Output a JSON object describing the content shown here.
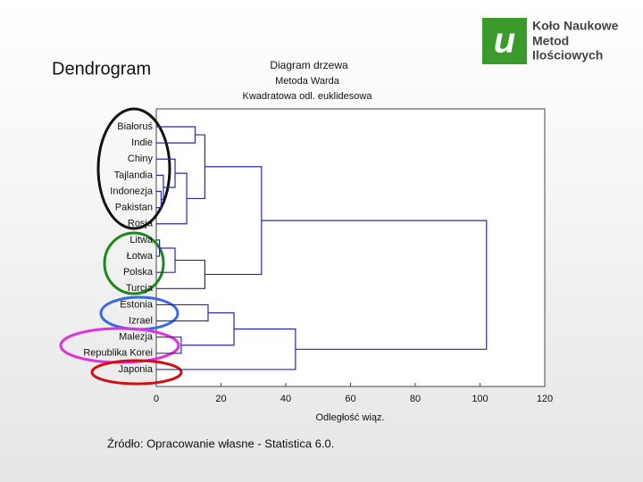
{
  "slide_title": "Dendrogram",
  "logo": [
    "Koło Naukowe",
    "Metod",
    "Ilościowych"
  ],
  "source": "Źródło: Opracowanie własne - Statistica 6.0.",
  "chart_data": {
    "type": "dendrogram",
    "title": [
      "Diagram drzewa",
      "Metoda Warda",
      "Kwadratowa odl. euklidesowa"
    ],
    "x_label": "Odległość wiąz.",
    "labels": [
      "Białoruś",
      "Indie",
      "Chiny",
      "Tajlandia",
      "Indonezja",
      "Pakistan",
      "Rosja",
      "Litwa",
      "Łotwa",
      "Polska",
      "Turcja",
      "Estonia",
      "Izrael",
      "Malezja",
      "Republika Korei",
      "Japonia"
    ],
    "merges": [
      {
        "left": 4,
        "right": 5,
        "height": 1.5
      },
      {
        "left": 3,
        "right": 16,
        "height": 2.2
      },
      {
        "left": 2,
        "right": 17,
        "height": 5.8
      },
      {
        "left": 6,
        "right": 18,
        "height": 9.4
      },
      {
        "left": 0,
        "right": 1,
        "height": 12
      },
      {
        "left": 20,
        "right": 19,
        "height": 15
      },
      {
        "left": 7,
        "right": 8,
        "height": 1
      },
      {
        "left": 22,
        "right": 9,
        "height": 5.8
      },
      {
        "left": 23,
        "right": 10,
        "height": 15
      },
      {
        "left": 21,
        "right": 24,
        "height": 32.5
      },
      {
        "left": 11,
        "right": 12,
        "height": 16
      },
      {
        "left": 13,
        "right": 14,
        "height": 7.7
      },
      {
        "left": 26,
        "right": 27,
        "height": 24
      },
      {
        "left": 28,
        "right": 15,
        "height": 43
      },
      {
        "left": 25,
        "right": 29,
        "height": 102
      }
    ],
    "color": "#2a2a9a",
    "xlim": [
      0,
      120
    ],
    "xticks": [
      0,
      20,
      40,
      60,
      80,
      100,
      120
    ]
  }
}
